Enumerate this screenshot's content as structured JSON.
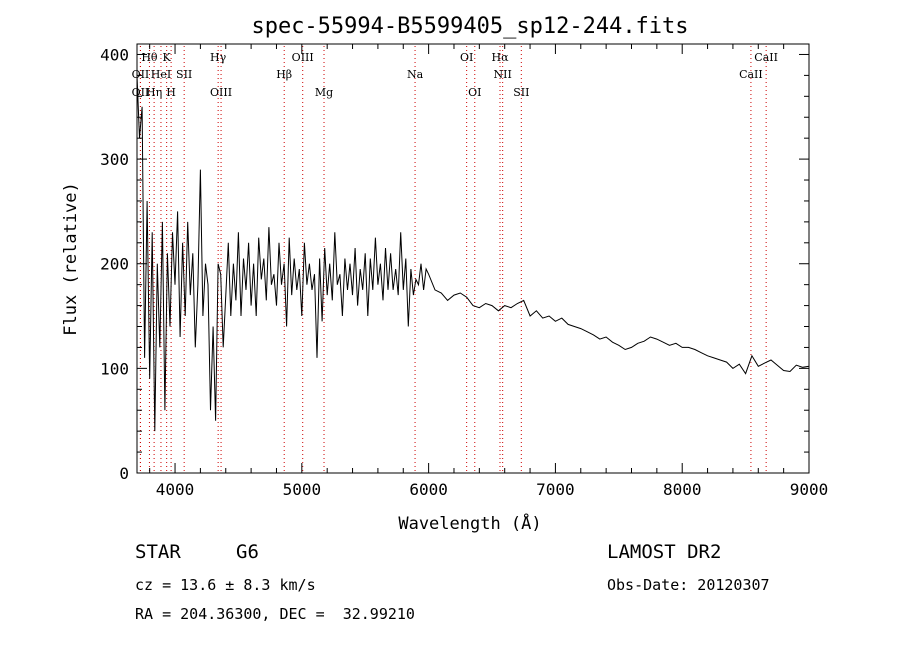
{
  "chart_data": {
    "type": "line",
    "title": "spec-55994-B5599405_sp12-244.fits",
    "xlabel": "Wavelength (Å)",
    "ylabel": "Flux (relative)",
    "xlim": [
      3700,
      9000
    ],
    "ylim": [
      0,
      410
    ],
    "xticks": [
      4000,
      5000,
      6000,
      7000,
      8000,
      9000
    ],
    "yticks": [
      0,
      100,
      200,
      300,
      400
    ],
    "grid": false,
    "series": [
      {
        "line_color": "#000000",
        "x": [
          3700,
          3720,
          3740,
          3760,
          3780,
          3800,
          3820,
          3840,
          3860,
          3880,
          3900,
          3920,
          3940,
          3960,
          3980,
          4000,
          4020,
          4040,
          4060,
          4080,
          4100,
          4120,
          4140,
          4160,
          4180,
          4200,
          4220,
          4240,
          4260,
          4280,
          4300,
          4320,
          4340,
          4360,
          4380,
          4400,
          4420,
          4440,
          4460,
          4480,
          4500,
          4520,
          4540,
          4560,
          4580,
          4600,
          4620,
          4640,
          4660,
          4680,
          4700,
          4720,
          4740,
          4760,
          4780,
          4800,
          4820,
          4840,
          4860,
          4880,
          4900,
          4920,
          4940,
          4960,
          4980,
          5000,
          5020,
          5040,
          5060,
          5080,
          5100,
          5120,
          5140,
          5160,
          5180,
          5200,
          5220,
          5240,
          5260,
          5280,
          5300,
          5320,
          5340,
          5360,
          5380,
          5400,
          5420,
          5440,
          5460,
          5480,
          5500,
          5520,
          5540,
          5560,
          5580,
          5600,
          5620,
          5640,
          5660,
          5680,
          5700,
          5720,
          5740,
          5760,
          5780,
          5800,
          5820,
          5840,
          5860,
          5880,
          5900,
          5920,
          5940,
          5960,
          5980,
          6000,
          6050,
          6100,
          6150,
          6200,
          6250,
          6300,
          6350,
          6400,
          6450,
          6500,
          6550,
          6600,
          6650,
          6700,
          6750,
          6800,
          6850,
          6900,
          6950,
          7000,
          7050,
          7100,
          7150,
          7200,
          7250,
          7300,
          7350,
          7400,
          7450,
          7500,
          7550,
          7600,
          7650,
          7700,
          7750,
          7800,
          7850,
          7900,
          7950,
          8000,
          8050,
          8100,
          8150,
          8200,
          8250,
          8300,
          8350,
          8400,
          8450,
          8500,
          8550,
          8600,
          8650,
          8700,
          8750,
          8800,
          8850,
          8900,
          8950,
          9000
        ],
        "y": [
          380,
          320,
          350,
          110,
          260,
          90,
          230,
          40,
          200,
          120,
          240,
          60,
          210,
          140,
          230,
          180,
          250,
          130,
          220,
          150,
          240,
          170,
          210,
          120,
          180,
          290,
          150,
          200,
          180,
          60,
          140,
          50,
          200,
          190,
          120,
          170,
          220,
          150,
          200,
          165,
          230,
          150,
          205,
          175,
          220,
          160,
          200,
          150,
          225,
          185,
          205,
          165,
          235,
          180,
          190,
          160,
          220,
          180,
          200,
          140,
          225,
          170,
          205,
          175,
          195,
          150,
          220,
          180,
          200,
          175,
          190,
          110,
          205,
          145,
          215,
          170,
          200,
          165,
          230,
          180,
          190,
          150,
          205,
          175,
          200,
          170,
          215,
          160,
          195,
          175,
          210,
          150,
          205,
          175,
          225,
          180,
          200,
          165,
          215,
          175,
          210,
          175,
          195,
          170,
          230,
          175,
          205,
          140,
          195,
          170,
          185,
          180,
          200,
          175,
          195,
          190,
          175,
          172,
          165,
          170,
          172,
          168,
          160,
          158,
          162,
          160,
          155,
          160,
          158,
          162,
          165,
          150,
          155,
          148,
          150,
          145,
          148,
          142,
          140,
          138,
          135,
          132,
          128,
          130,
          125,
          122,
          118,
          120,
          124,
          126,
          130,
          128,
          125,
          122,
          124,
          120,
          120,
          118,
          115,
          112,
          110,
          108,
          106,
          100,
          104,
          95,
          112,
          102,
          105,
          108,
          103,
          98,
          97,
          103,
          101,
          102
        ]
      }
    ],
    "annotations": [
      {
        "label": "Hθ",
        "x": 3798,
        "row": 0
      },
      {
        "label": "K",
        "x": 3934,
        "row": 0
      },
      {
        "label": "Hγ",
        "x": 4340,
        "row": 0
      },
      {
        "label": "OIII",
        "x": 5007,
        "row": 0
      },
      {
        "label": "OI",
        "x": 6300,
        "row": 0
      },
      {
        "label": "Hα",
        "x": 6563,
        "row": 0
      },
      {
        "label": "CaII",
        "x": 8662,
        "row": 0
      },
      {
        "label": "OII",
        "x": 3727,
        "row": 1
      },
      {
        "label": "HeI",
        "x": 3889,
        "row": 1
      },
      {
        "label": "SII",
        "x": 4072,
        "row": 1
      },
      {
        "label": "Hβ",
        "x": 4861,
        "row": 1
      },
      {
        "label": "Na",
        "x": 5893,
        "row": 1
      },
      {
        "label": "NII",
        "x": 6584,
        "row": 1
      },
      {
        "label": "CaII",
        "x": 8542,
        "row": 1
      },
      {
        "label": "OII",
        "x": 3727,
        "row": 2
      },
      {
        "label": "Hη",
        "x": 3835,
        "row": 2
      },
      {
        "label": "H",
        "x": 3969,
        "row": 2
      },
      {
        "label": "OIII",
        "x": 4363,
        "row": 2
      },
      {
        "label": "Mg",
        "x": 5175,
        "row": 2
      },
      {
        "label": "OI",
        "x": 6364,
        "row": 2
      },
      {
        "label": "SII",
        "x": 6731,
        "row": 2
      }
    ],
    "line_marker_color": "#cc0000"
  },
  "info": {
    "object_class": "STAR",
    "subclass": "G6",
    "survey": "LAMOST DR2",
    "cz": "cz = 13.6 ± 8.3 km/s",
    "obs_date": "Obs-Date: 20120307",
    "coords": "RA = 204.36300, DEC =  32.99210"
  }
}
